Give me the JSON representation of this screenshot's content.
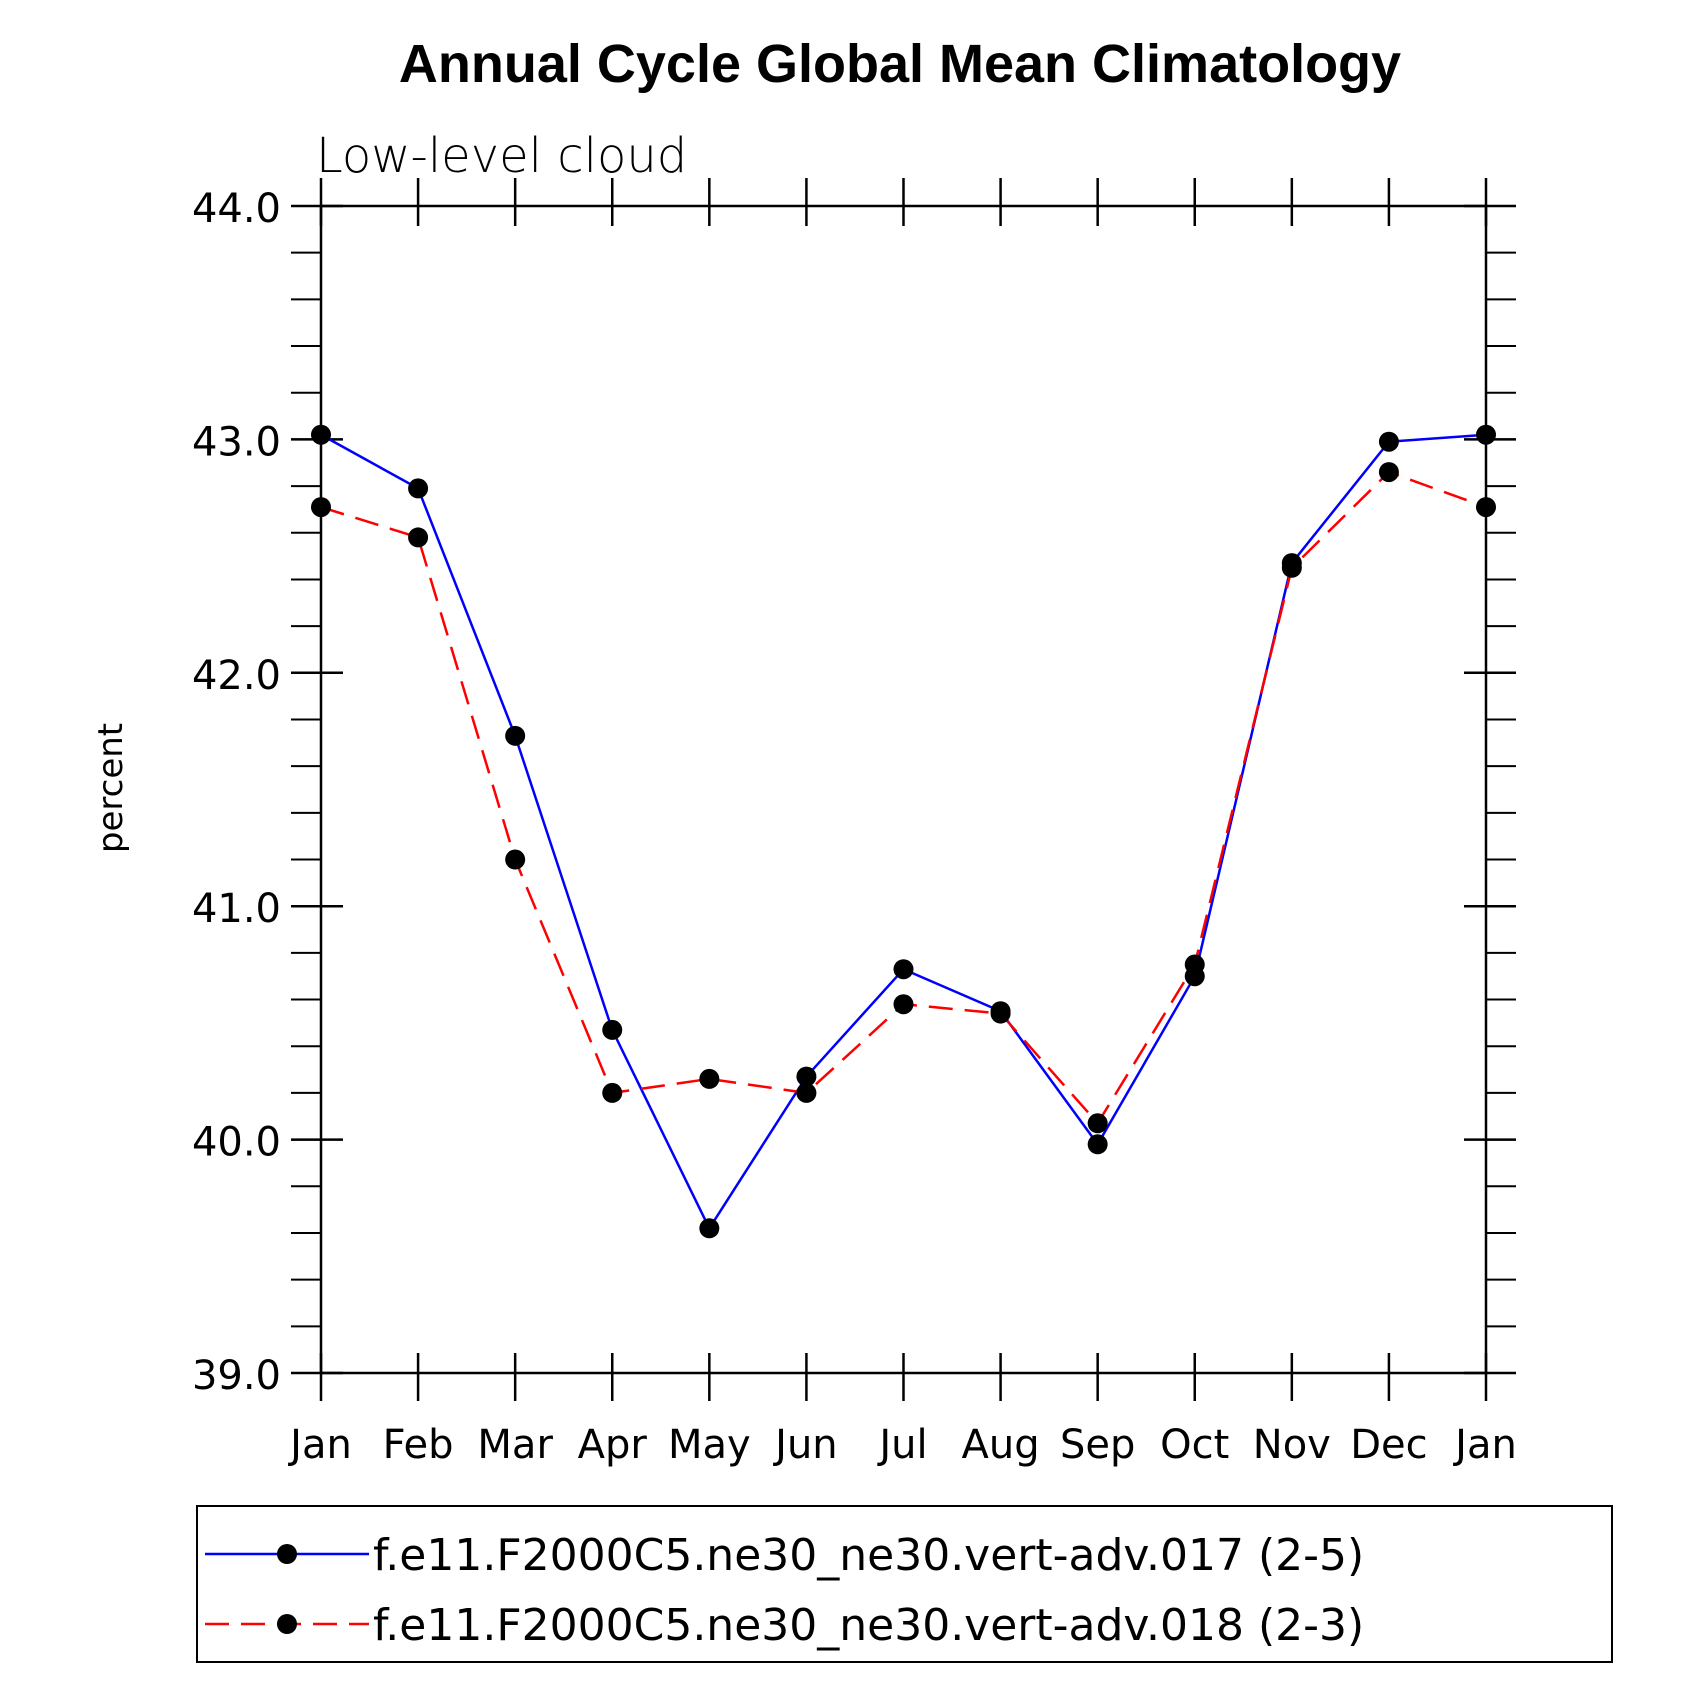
{
  "chart_data": {
    "type": "line",
    "title": "Annual Cycle Global Mean Climatology",
    "subtitle": "Low-level cloud",
    "ylabel": "percent",
    "xlabel": "",
    "categories": [
      "Jan",
      "Feb",
      "Mar",
      "Apr",
      "May",
      "Jun",
      "Jul",
      "Aug",
      "Sep",
      "Oct",
      "Nov",
      "Dec",
      "Jan"
    ],
    "ylim": [
      39.0,
      44.0
    ],
    "yticks": [
      "39.0",
      "40.0",
      "41.0",
      "42.0",
      "43.0",
      "44.0"
    ],
    "grid": false,
    "legend_position": "bottom",
    "series": [
      {
        "name": "f.e11.F2000C5.ne30_ne30.vert-adv.017 (2-5)",
        "color": "#0000ff",
        "style": "solid",
        "values": [
          43.02,
          42.79,
          41.73,
          40.47,
          39.62,
          40.27,
          40.73,
          40.55,
          39.98,
          40.7,
          42.47,
          42.99,
          43.02
        ]
      },
      {
        "name": "f.e11.F2000C5.ne30_ne30.vert-adv.018 (2-3)",
        "color": "#ff0000",
        "style": "dashed",
        "values": [
          42.71,
          42.58,
          41.2,
          40.2,
          40.26,
          40.2,
          40.58,
          40.54,
          40.07,
          40.75,
          42.45,
          42.86,
          42.71
        ]
      }
    ]
  }
}
